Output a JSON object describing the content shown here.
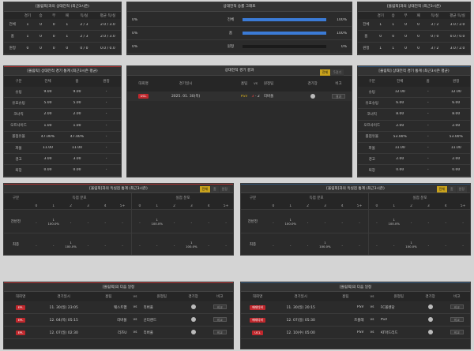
{
  "colors": {
    "accent": "#c9a21c",
    "red_badge": "#c0282d",
    "bar_blue": "#3b7bd6"
  },
  "h2h_left": {
    "title": "[올림픽]과의 상대전적 (최근3시즌)",
    "headers": [
      "",
      "경기",
      "승",
      "무",
      "패",
      "득/실",
      "평균 득/실"
    ],
    "rows": [
      [
        "전체",
        "1",
        "0",
        "0",
        "1",
        "2 / 3",
        "2.0 / 3.0"
      ],
      [
        "홈",
        "1",
        "0",
        "0",
        "1",
        "2 / 3",
        "2.0 / 3.0"
      ],
      [
        "원정",
        "0",
        "0",
        "0",
        "0",
        "0 / 0",
        "0.0 / 0.0"
      ]
    ]
  },
  "h2h_mid": {
    "title": "상대전적 승률 그래프",
    "rows": [
      {
        "left": "0%",
        "label": "전체",
        "fill": 1.0,
        "right": "100%"
      },
      {
        "left": "0%",
        "label": "홈",
        "fill": 1.0,
        "right": "100%"
      },
      {
        "left": "0%",
        "label": "원정",
        "fill": 0,
        "right": "0%"
      }
    ]
  },
  "h2h_right": {
    "title": "[올림픽]과의 상대전적 (최근3시즌)",
    "headers": [
      "",
      "경기",
      "승",
      "무",
      "패",
      "득/실",
      "평균 득/실"
    ],
    "rows": [
      [
        "전체",
        "1",
        "1",
        "0",
        "0",
        "3 / 2",
        "3.0 / 2.0"
      ],
      [
        "홈",
        "0",
        "0",
        "0",
        "0",
        "0 / 0",
        "0.0 / 0.0"
      ],
      [
        "원정",
        "1",
        "1",
        "0",
        "0",
        "3 / 2",
        "3.0 / 2.0"
      ]
    ]
  },
  "stats_left": {
    "title": "[올림픽] 상대전적 경기 통계 (최근3시즌 평균)",
    "headers": [
      "구분",
      "전체",
      "홈",
      "원정"
    ],
    "rows": [
      [
        "슈팅",
        "9.00",
        "9.00",
        "-"
      ],
      [
        "유효슈팅",
        "5.00",
        "5.00",
        "-"
      ],
      [
        "코너킥",
        "2.00",
        "2.00",
        "-"
      ],
      [
        "오프사이드",
        "1.00",
        "1.00",
        "-"
      ],
      [
        "볼점유율",
        "47.00%",
        "47.00%",
        "-"
      ],
      [
        "파울",
        "11.00",
        "11.00",
        "-"
      ],
      [
        "경고",
        "3.00",
        "3.00",
        "-"
      ],
      [
        "퇴장",
        "0.00",
        "0.00",
        "-"
      ]
    ]
  },
  "match_mid": {
    "title": "상대전적 경기 결과",
    "toggles": [
      "전체",
      "5경기"
    ],
    "headers": [
      "대회명",
      "경기일시",
      "홈팀",
      "vs",
      "원정팀",
      "경기장",
      "비고"
    ],
    "row": {
      "league": "UCL",
      "date": "2025. 01. 30(목)",
      "home": "PSV",
      "score_home": "3",
      "dash": "-",
      "score_away": "2",
      "away": "리버풀",
      "note": "결과"
    }
  },
  "stats_right": {
    "title": "[올림픽] 상대전적 경기 통계 (최근3시즌 평균)",
    "headers": [
      "구분",
      "전체",
      "홈",
      "원정"
    ],
    "rows": [
      [
        "슈팅",
        "12.00",
        "-",
        "12.00"
      ],
      [
        "유효슈팅",
        "6.00",
        "-",
        "6.00"
      ],
      [
        "코너킥",
        "8.00",
        "-",
        "8.00"
      ],
      [
        "오프사이드",
        "2.00",
        "-",
        "2.00"
      ],
      [
        "볼점유율",
        "53.00%",
        "-",
        "53.00%"
      ],
      [
        "파울",
        "11.00",
        "-",
        "11.00"
      ],
      [
        "경고",
        "2.00",
        "-",
        "2.00"
      ],
      [
        "퇴장",
        "0.00",
        "-",
        "0.00"
      ]
    ]
  },
  "goals_left": {
    "title": "[올림픽]과의 득실점 통계 (최근3시즌)",
    "toggles": [
      "전체",
      "홈",
      "원정"
    ],
    "group_headers": [
      "득점 분포",
      "실점 분포"
    ],
    "label_header": "구분",
    "cols": [
      "0",
      "1",
      "2",
      "3",
      "4",
      "5+",
      "0",
      "1",
      "2",
      "3",
      "4",
      "5+"
    ],
    "rows": [
      {
        "label": "전반전",
        "cells": [
          "-",
          "1\n100.0%",
          "-",
          "-",
          "-",
          "-",
          "-",
          "1\n100.0%",
          "-",
          "-",
          "-",
          "-"
        ]
      },
      {
        "label": "최종",
        "cells": [
          "-",
          "-",
          "1\n100.0%",
          "-",
          "-",
          "-",
          "-",
          "-",
          "-",
          "1\n100.0%",
          "-",
          "-"
        ]
      }
    ]
  },
  "goals_right": {
    "title": "[올림픽]과의 득실점 통계 (최근3시즌)",
    "toggles": [
      "전체",
      "홈",
      "원정"
    ],
    "group_headers": [
      "득점 분포",
      "실점 분포"
    ],
    "label_header": "구분",
    "cols": [
      "0",
      "1",
      "2",
      "3",
      "4",
      "5+",
      "0",
      "1",
      "2",
      "3",
      "4",
      "5+"
    ],
    "rows": [
      {
        "label": "전반전",
        "cells": [
          "-",
          "1\n100.0%",
          "-",
          "-",
          "-",
          "-",
          "-",
          "1\n100.0%",
          "-",
          "-",
          "-",
          "-"
        ]
      },
      {
        "label": "최종",
        "cells": [
          "-",
          "-",
          "-",
          "1\n100.0%",
          "-",
          "-",
          "-",
          "-",
          "1\n100.0%",
          "-",
          "-",
          "-"
        ]
      }
    ]
  },
  "next_left": {
    "title": "[올림픽]의 다음 일정",
    "headers": [
      "대회명",
      "경기일시",
      "홈팀",
      "vs",
      "원정팀",
      "경기장",
      "비고"
    ],
    "rows": [
      {
        "league": "EPL",
        "date": "11. 30(일) 23:05",
        "home": "웨스트햄",
        "away": "리버풀",
        "note": "비교"
      },
      {
        "league": "EPL",
        "date": "12. 04(목) 05:15",
        "home": "리버풀",
        "away": "선더랜드",
        "note": "비교"
      },
      {
        "league": "EPL",
        "date": "12. 07(일) 02:30",
        "home": "리즈U",
        "away": "리버풀",
        "note": "비교"
      }
    ]
  },
  "next_right": {
    "title": "[올림픽]의 다음 일정",
    "headers": [
      "대회명",
      "경기일시",
      "홈팀",
      "vs",
      "원정팀",
      "경기장",
      "비고"
    ],
    "rows": [
      {
        "league": "에레디비",
        "date": "11. 30(일) 20:15",
        "home": "PSV",
        "away": "FC볼렌담",
        "note": "비교"
      },
      {
        "league": "에레디비",
        "date": "12. 07(일) 05:30",
        "home": "즈볼레",
        "away": "PSV",
        "note": "비교"
      },
      {
        "league": "UCL",
        "date": "12. 10(수) 05:00",
        "home": "PSV",
        "away": "AT마드리드",
        "note": "비교"
      }
    ]
  }
}
